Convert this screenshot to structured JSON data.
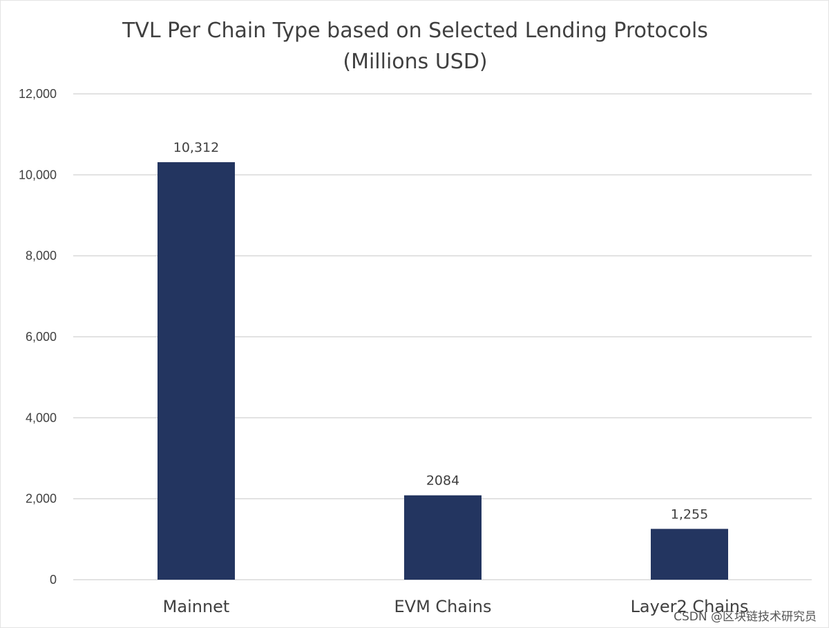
{
  "chart_data": {
    "type": "bar",
    "title": [
      "TVL Per Chain Type based on Selected Lending Protocols",
      "(Millions USD)"
    ],
    "categories": [
      "Mainnet",
      "EVM Chains",
      "Layer2 Chains"
    ],
    "values": [
      10312,
      2084,
      1255
    ],
    "data_labels": [
      "10,312",
      "2084",
      "1,255"
    ],
    "ylim": [
      0,
      12000
    ],
    "yticks": [
      0,
      2000,
      4000,
      6000,
      8000,
      10000,
      12000
    ],
    "ytick_labels": [
      "0",
      "2,000",
      "4,000",
      "6,000",
      "8,000",
      "10,000",
      "12,000"
    ],
    "xlabel": "",
    "ylabel": "",
    "grid": true,
    "legend": "none",
    "bar_color": "#233560"
  },
  "watermark": "CSDN @区块链技术研究员"
}
